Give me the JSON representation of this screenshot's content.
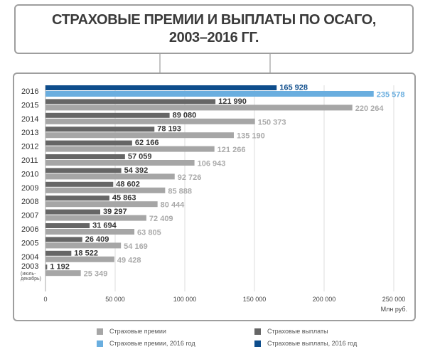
{
  "title": {
    "line1": "СТРАХОВЫЕ ПРЕМИИ И ВЫПЛАТЫ ПО ОСАГО,",
    "line2": "2003–2016 ГГ."
  },
  "chart_data": {
    "type": "bar",
    "orientation": "horizontal",
    "categories": [
      "2016",
      "2015",
      "2014",
      "2013",
      "2012",
      "2011",
      "2010",
      "2009",
      "2008",
      "2007",
      "2006",
      "2005",
      "2004",
      "2003"
    ],
    "category_sublabels": {
      "2003": [
        "(июль-",
        "декабрь)"
      ]
    },
    "series": [
      {
        "name": "Страховые выплаты",
        "color": "#666666",
        "values": [
          null,
          121990,
          89080,
          78193,
          62166,
          57059,
          54392,
          48602,
          45863,
          39297,
          31694,
          26409,
          18522,
          1192
        ]
      },
      {
        "name": "Страховые премии",
        "color": "#a6a6a6",
        "values": [
          null,
          220264,
          150373,
          135190,
          121266,
          106943,
          92726,
          85888,
          80444,
          72409,
          63805,
          54169,
          49428,
          25349
        ]
      },
      {
        "name": "Страховые выплаты, 2016 год",
        "color": "#0e4d8c",
        "values": [
          165928,
          null,
          null,
          null,
          null,
          null,
          null,
          null,
          null,
          null,
          null,
          null,
          null,
          null
        ]
      },
      {
        "name": "Страховые премии, 2016 год",
        "color": "#6aaedf",
        "values": [
          235578,
          null,
          null,
          null,
          null,
          null,
          null,
          null,
          null,
          null,
          null,
          null,
          null,
          null
        ]
      }
    ],
    "xlim": [
      0,
      250000
    ],
    "xticks": [
      0,
      50000,
      100000,
      150000,
      200000,
      250000
    ],
    "xtick_labels": [
      "0",
      "50 000",
      "100 000",
      "150 000",
      "200 000",
      "250 000"
    ],
    "xlabel": "Млн руб.",
    "grid": "vertical",
    "legend_position": "bottom"
  },
  "legend": [
    {
      "label": "Страховые премии",
      "color": "#a6a6a6"
    },
    {
      "label": "Страховые выплаты",
      "color": "#666666"
    },
    {
      "label": "Страховые премии, 2016 год",
      "color": "#6aaedf"
    },
    {
      "label": "Страховые выплаты, 2016 год",
      "color": "#0e4d8c"
    }
  ]
}
